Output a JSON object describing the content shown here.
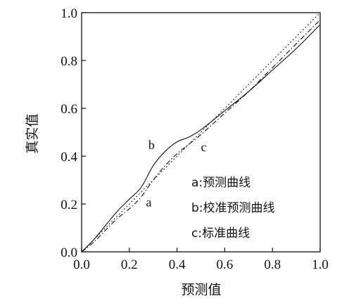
{
  "chart_data": {
    "type": "line",
    "title": "",
    "xlabel": "预测值",
    "ylabel": "真实值",
    "xlim": [
      0.0,
      1.0
    ],
    "ylim": [
      0.0,
      1.0
    ],
    "x_ticks": [
      "0.0",
      "0.2",
      "0.4",
      "0.6",
      "0.8",
      "1.0"
    ],
    "y_ticks": [
      "0.0",
      "0.2",
      "0.4",
      "0.6",
      "0.8",
      "1.0"
    ],
    "grid": false,
    "series": [
      {
        "id": "a",
        "label": "a",
        "style": "dashdot",
        "points": [
          [
            0.0,
            0.0
          ],
          [
            0.05,
            0.04
          ],
          [
            0.1,
            0.09
          ],
          [
            0.15,
            0.14
          ],
          [
            0.2,
            0.18
          ],
          [
            0.25,
            0.23
          ],
          [
            0.3,
            0.3
          ],
          [
            0.35,
            0.36
          ],
          [
            0.4,
            0.41
          ],
          [
            0.45,
            0.45
          ],
          [
            0.5,
            0.49
          ],
          [
            0.6,
            0.58
          ],
          [
            0.7,
            0.67
          ],
          [
            0.8,
            0.77
          ],
          [
            0.9,
            0.87
          ],
          [
            1.0,
            0.97
          ]
        ]
      },
      {
        "id": "b",
        "label": "b",
        "style": "solid",
        "points": [
          [
            0.0,
            0.0
          ],
          [
            0.05,
            0.05
          ],
          [
            0.1,
            0.11
          ],
          [
            0.15,
            0.17
          ],
          [
            0.2,
            0.22
          ],
          [
            0.25,
            0.27
          ],
          [
            0.3,
            0.36
          ],
          [
            0.35,
            0.42
          ],
          [
            0.4,
            0.46
          ],
          [
            0.45,
            0.48
          ],
          [
            0.5,
            0.51
          ],
          [
            0.6,
            0.59
          ],
          [
            0.7,
            0.67
          ],
          [
            0.8,
            0.76
          ],
          [
            0.9,
            0.85
          ],
          [
            1.0,
            0.95
          ]
        ]
      },
      {
        "id": "c",
        "label": "c",
        "style": "dotted",
        "points": [
          [
            0.0,
            0.0
          ],
          [
            1.0,
            1.0
          ]
        ]
      }
    ],
    "annotations": [
      {
        "text": "b",
        "x": 0.28,
        "y": 0.43
      },
      {
        "text": "c",
        "x": 0.5,
        "y": 0.42
      },
      {
        "text": "a",
        "x": 0.27,
        "y": 0.19
      }
    ],
    "legend": {
      "placement": "right-middle",
      "items": [
        "a:预测曲线",
        "b:校准预测曲线",
        "c:标准曲线"
      ]
    },
    "colors": {
      "line": "#111111",
      "axis": "#111111",
      "background": "#ffffff"
    }
  }
}
